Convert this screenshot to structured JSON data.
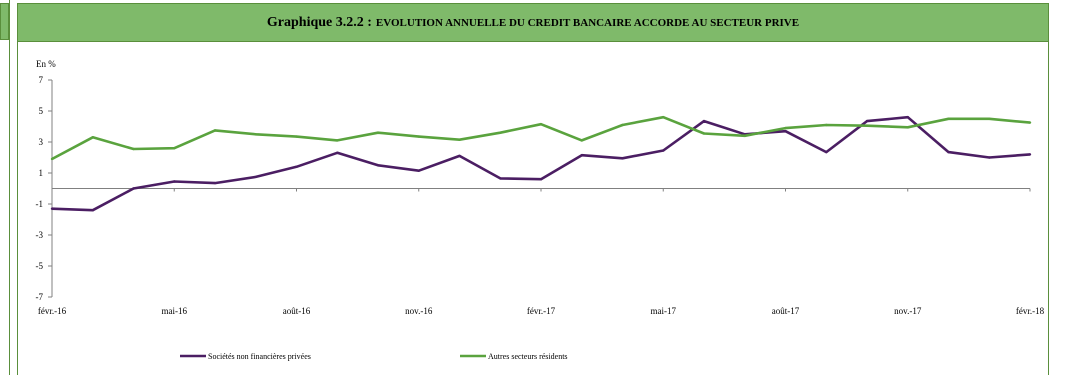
{
  "title": {
    "lead": "Graphique 3.2.2 :",
    "rest": "EVOLUTION ANNUELLE DU CREDIT BANCAIRE ACCORDE AU SECTEUR PRIVE"
  },
  "colors": {
    "frame": "#5a8f3c",
    "title_bg": "#7fba6a",
    "series_1": "#4b1e63",
    "series_2": "#5aa33e"
  },
  "chart_data": {
    "type": "line",
    "ylabel": "En %",
    "ylim": [
      -7,
      7
    ],
    "yticks": [
      -7,
      -5,
      -3,
      -1,
      1,
      3,
      5,
      7
    ],
    "x": [
      "févr.-16",
      "mars-16",
      "avr.-16",
      "mai-16",
      "juin-16",
      "juil.-16",
      "août-16",
      "sept.-16",
      "oct.-16",
      "nov.-16",
      "déc.-16",
      "janv.-17",
      "févr.-17",
      "mars-17",
      "avr.-17",
      "mai-17",
      "juin-17",
      "juil.-17",
      "août-17",
      "sept.-17",
      "oct.-17",
      "nov.-17",
      "déc.-17",
      "janv.-18",
      "févr.-18"
    ],
    "xtick_labels": [
      "févr.-16",
      "mai-16",
      "août-16",
      "nov.-16",
      "févr.-17",
      "mai-17",
      "août-17",
      "nov.-17",
      "févr.-18"
    ],
    "series": [
      {
        "name": "Sociétés non financières privées",
        "color": "#4b1e63",
        "values": [
          -1.3,
          -1.4,
          0.0,
          0.45,
          0.35,
          0.75,
          1.4,
          2.3,
          1.5,
          1.15,
          2.1,
          0.65,
          0.6,
          2.15,
          1.95,
          2.45,
          4.35,
          3.5,
          3.7,
          2.35,
          4.35,
          4.6,
          2.35,
          2.0,
          2.2
        ]
      },
      {
        "name": "Autres secteurs résidents",
        "color": "#5aa33e",
        "values": [
          1.9,
          3.3,
          2.55,
          2.6,
          3.75,
          3.5,
          3.35,
          3.1,
          3.6,
          3.35,
          3.15,
          3.6,
          4.15,
          3.1,
          4.1,
          4.6,
          3.55,
          3.4,
          3.9,
          4.1,
          4.05,
          3.95,
          4.5,
          4.5,
          4.25
        ]
      }
    ],
    "legend_position": "bottom",
    "grid": false
  }
}
